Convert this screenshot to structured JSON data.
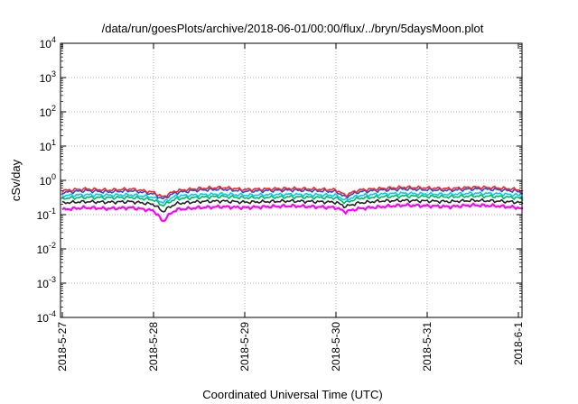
{
  "chart_data": {
    "type": "area",
    "title": "/data/run/goesPlots/archive/2018-06-01/00:00/flux/../bryn/5daysMoon.plot",
    "xlabel": "Coordinated Universal Time (UTC)",
    "ylabel": "cSv/day",
    "y_scale": "log",
    "ylim": [
      0.0001,
      10000
    ],
    "y_ticks": [
      {
        "base": "10",
        "exp": "-4"
      },
      {
        "base": "10",
        "exp": "-3"
      },
      {
        "base": "10",
        "exp": "-2"
      },
      {
        "base": "10",
        "exp": "-1"
      },
      {
        "base": "10",
        "exp": "0"
      },
      {
        "base": "10",
        "exp": "1"
      },
      {
        "base": "10",
        "exp": "2"
      },
      {
        "base": "10",
        "exp": "3"
      },
      {
        "base": "10",
        "exp": "4"
      }
    ],
    "x_ticks": [
      "2018-5-27",
      "2018-5-28",
      "2018-5-29",
      "2018-5-30",
      "2018-5-31",
      "2018-6-1"
    ],
    "grid": true,
    "x_days": [
      0.0,
      0.25,
      0.5,
      0.75,
      1.0,
      1.1,
      1.25,
      1.5,
      1.75,
      2.0,
      2.25,
      2.5,
      2.75,
      3.0,
      3.1,
      3.25,
      3.5,
      3.75,
      4.0,
      4.25,
      4.5,
      4.75,
      5.0,
      5.05
    ],
    "series": [
      {
        "color": "#ff00ff",
        "values": [
          0.14,
          0.16,
          0.15,
          0.16,
          0.13,
          0.06,
          0.14,
          0.16,
          0.17,
          0.16,
          0.17,
          0.18,
          0.17,
          0.16,
          0.12,
          0.15,
          0.17,
          0.19,
          0.18,
          0.17,
          0.19,
          0.18,
          0.16,
          0.14
        ]
      },
      {
        "color": "#222222",
        "values": [
          0.22,
          0.24,
          0.23,
          0.24,
          0.2,
          0.12,
          0.21,
          0.24,
          0.25,
          0.23,
          0.24,
          0.25,
          0.24,
          0.23,
          0.17,
          0.22,
          0.25,
          0.26,
          0.25,
          0.24,
          0.26,
          0.25,
          0.23,
          0.21
        ]
      },
      {
        "color": "#00bb55",
        "values": [
          0.3,
          0.32,
          0.31,
          0.32,
          0.27,
          0.18,
          0.29,
          0.32,
          0.34,
          0.31,
          0.32,
          0.33,
          0.32,
          0.31,
          0.22,
          0.3,
          0.33,
          0.35,
          0.34,
          0.33,
          0.35,
          0.34,
          0.31,
          0.28
        ]
      },
      {
        "color": "#00ccee",
        "values": [
          0.36,
          0.38,
          0.37,
          0.38,
          0.32,
          0.22,
          0.35,
          0.38,
          0.4,
          0.37,
          0.38,
          0.39,
          0.38,
          0.37,
          0.26,
          0.36,
          0.4,
          0.42,
          0.4,
          0.39,
          0.42,
          0.41,
          0.37,
          0.33
        ]
      },
      {
        "color": "#1e4fe0",
        "values": [
          0.44,
          0.5,
          0.46,
          0.5,
          0.4,
          0.28,
          0.44,
          0.52,
          0.55,
          0.48,
          0.5,
          0.52,
          0.5,
          0.47,
          0.32,
          0.46,
          0.52,
          0.56,
          0.53,
          0.51,
          0.56,
          0.54,
          0.48,
          0.42
        ]
      },
      {
        "color": "#ff2020",
        "values": [
          0.5,
          0.56,
          0.52,
          0.56,
          0.45,
          0.32,
          0.5,
          0.58,
          0.62,
          0.54,
          0.56,
          0.58,
          0.56,
          0.53,
          0.36,
          0.52,
          0.58,
          0.63,
          0.6,
          0.57,
          0.63,
          0.61,
          0.54,
          0.47
        ]
      }
    ]
  }
}
